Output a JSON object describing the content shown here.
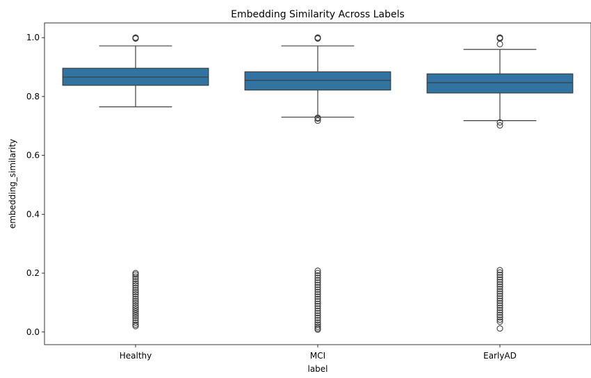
{
  "chart_data": {
    "type": "box",
    "title": "Embedding Similarity Across Labels",
    "xlabel": "label",
    "ylabel": "embedding_similarity",
    "ylim": [
      -0.043,
      1.05
    ],
    "yticks": [
      "0.0",
      "0.2",
      "0.4",
      "0.6",
      "0.8",
      "1.0"
    ],
    "grid": false,
    "box_color": "#3274a1",
    "line_color": "#3d3d3d",
    "categories": [
      "Healthy",
      "MCI",
      "EarlyAD"
    ],
    "boxes": [
      {
        "label": "Healthy",
        "q1": 0.838,
        "median": 0.866,
        "q3": 0.896,
        "whisker_low": 0.765,
        "whisker_high": 0.972,
        "outliers_high": [
          0.997,
          0.999,
          1.0,
          1.0
        ],
        "outliers_low": [
          0.2,
          0.195,
          0.188,
          0.18,
          0.172,
          0.165,
          0.158,
          0.15,
          0.142,
          0.135,
          0.128,
          0.12,
          0.112,
          0.105,
          0.098,
          0.09,
          0.083,
          0.076,
          0.069,
          0.062,
          0.055,
          0.048,
          0.04,
          0.032,
          0.025,
          0.02
        ]
      },
      {
        "label": "MCI",
        "q1": 0.822,
        "median": 0.855,
        "q3": 0.884,
        "whisker_low": 0.73,
        "whisker_high": 0.972,
        "outliers_high": [
          0.997,
          0.999,
          1.0,
          1.0
        ],
        "outliers_low": [
          0.728,
          0.725,
          0.718,
          0.208,
          0.2,
          0.192,
          0.184,
          0.176,
          0.168,
          0.16,
          0.152,
          0.144,
          0.136,
          0.128,
          0.12,
          0.112,
          0.104,
          0.096,
          0.088,
          0.08,
          0.072,
          0.064,
          0.056,
          0.048,
          0.04,
          0.032,
          0.025,
          0.018,
          0.012,
          0.008
        ]
      },
      {
        "label": "EarlyAD",
        "q1": 0.812,
        "median": 0.847,
        "q3": 0.877,
        "whisker_low": 0.718,
        "whisker_high": 0.96,
        "outliers_high": [
          0.978,
          0.997,
          0.999,
          1.0,
          1.0
        ],
        "outliers_low": [
          0.712,
          0.702,
          0.21,
          0.202,
          0.194,
          0.186,
          0.178,
          0.17,
          0.162,
          0.154,
          0.146,
          0.138,
          0.13,
          0.122,
          0.114,
          0.106,
          0.098,
          0.09,
          0.082,
          0.074,
          0.066,
          0.058,
          0.05,
          0.042,
          0.035,
          0.012
        ]
      }
    ]
  }
}
